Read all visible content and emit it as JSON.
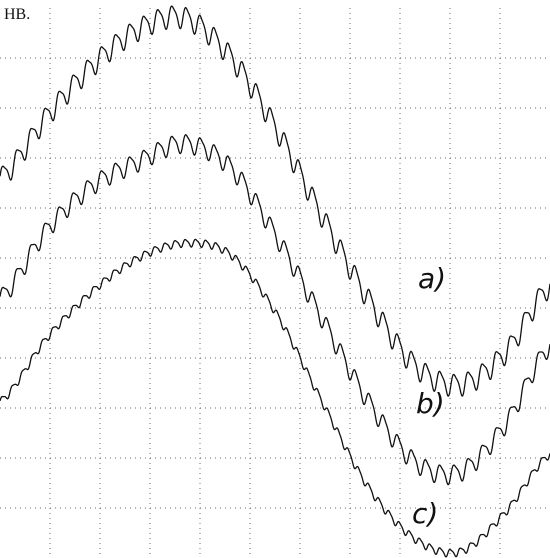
{
  "corner_label": "HB.",
  "chart_data": {
    "type": "line",
    "title": "",
    "xlabel": "",
    "ylabel": "",
    "grid": true,
    "grid_style": "dotted",
    "x_divisions": 11,
    "y_divisions": 11,
    "xlim": [
      0,
      11
    ],
    "ylim": [
      0,
      11
    ],
    "colors": {
      "trace": "#111111",
      "grid": "#6b6b6b",
      "background": "#ffffff"
    },
    "series": [
      {
        "label": "a)",
        "x": [
          0.0,
          0.92,
          1.84,
          2.76,
          3.68,
          4.6,
          5.52,
          6.44,
          7.36,
          8.28,
          9.2,
          10.12,
          11.0
        ],
        "y": [
          7.6,
          8.82,
          9.85,
          10.58,
          10.82,
          10.05,
          8.6,
          6.85,
          5.2,
          3.88,
          3.48,
          4.13,
          5.45
        ],
        "ripple_cycles": 39,
        "ripple_amplitude": 0.26
      },
      {
        "label": "b)",
        "x": [
          0.0,
          0.92,
          1.84,
          2.76,
          3.68,
          4.6,
          5.52,
          6.44,
          7.36,
          8.28,
          9.2,
          10.12,
          11.0
        ],
        "y": [
          5.2,
          6.55,
          7.45,
          7.93,
          8.3,
          7.83,
          6.45,
          4.8,
          3.15,
          1.95,
          1.73,
          2.7,
          4.25
        ],
        "ripple_cycles": 39,
        "ripple_amplitude": 0.22
      },
      {
        "label": "c)",
        "x": [
          0.0,
          0.92,
          1.84,
          2.76,
          3.68,
          4.6,
          5.52,
          6.44,
          7.36,
          8.28,
          9.2,
          10.12,
          11.0
        ],
        "y": [
          3.13,
          4.38,
          5.33,
          6.0,
          6.3,
          6.08,
          4.9,
          3.13,
          1.43,
          0.4,
          0.13,
          0.93,
          2.08
        ],
        "ripple_cycles": 54,
        "ripple_amplitude": 0.09
      }
    ]
  }
}
